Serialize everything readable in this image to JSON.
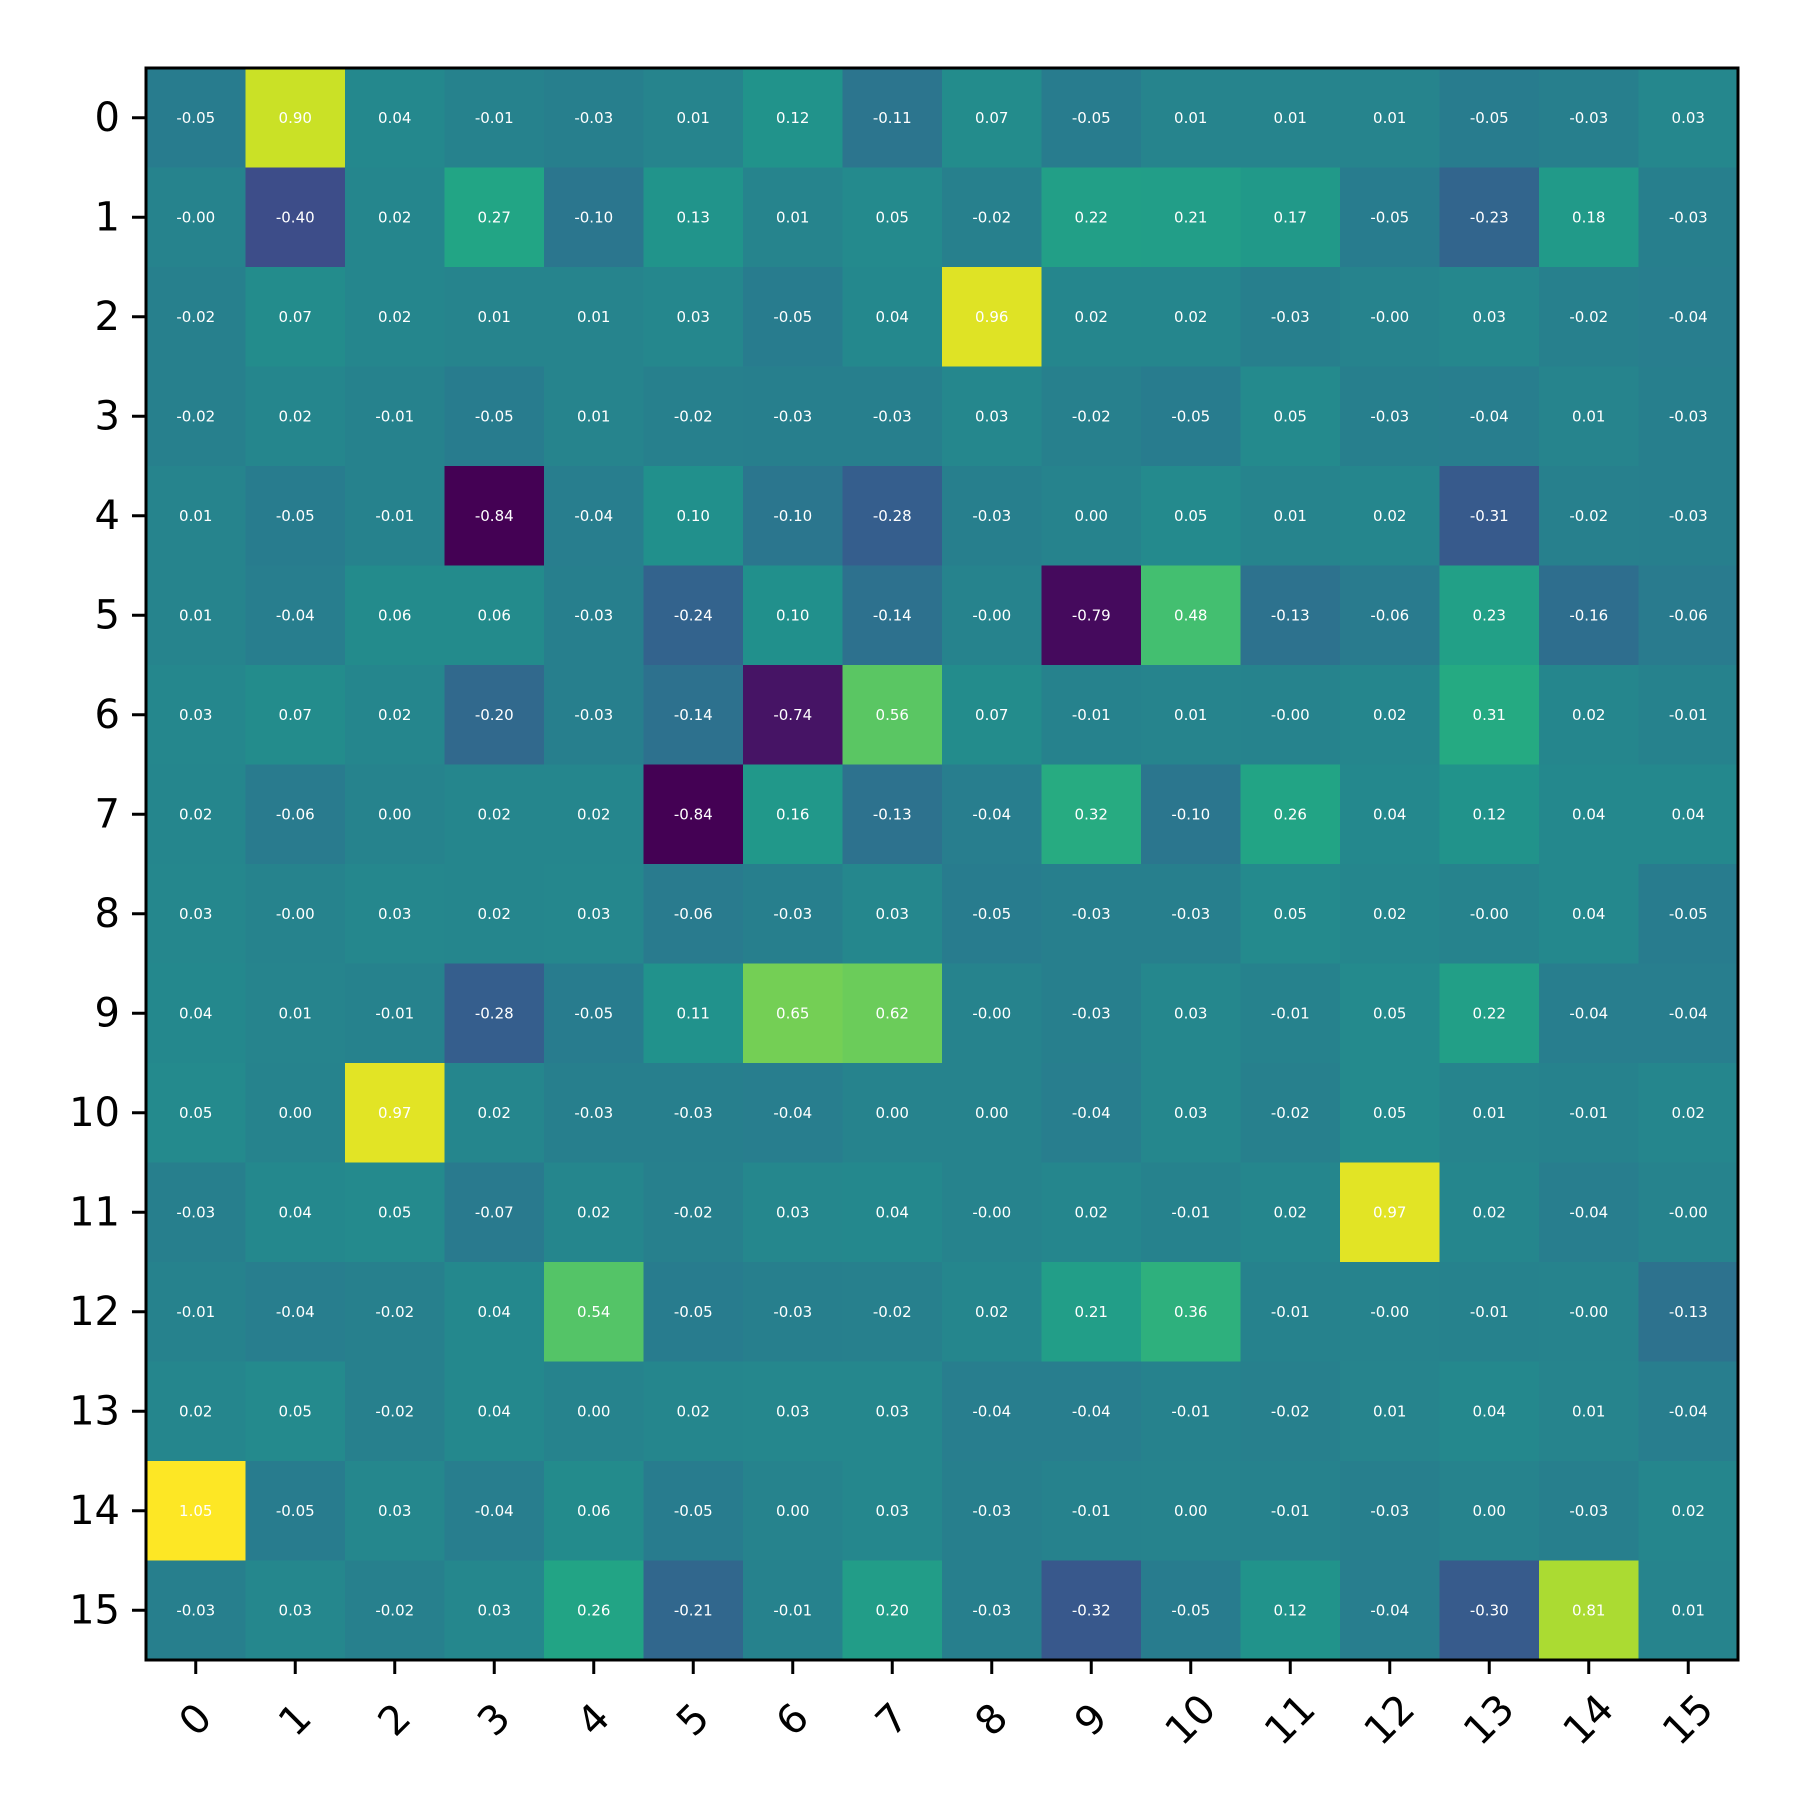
{
  "chart_data": {
    "type": "heatmap",
    "title": "",
    "xlabel": "",
    "ylabel": "",
    "x_categories": [
      "0",
      "1",
      "2",
      "3",
      "4",
      "5",
      "6",
      "7",
      "8",
      "9",
      "10",
      "11",
      "12",
      "13",
      "14",
      "15"
    ],
    "y_categories": [
      "0",
      "1",
      "2",
      "3",
      "4",
      "5",
      "6",
      "7",
      "8",
      "9",
      "10",
      "11",
      "12",
      "13",
      "14",
      "15"
    ],
    "x_tick_rotation_deg": 45,
    "colormap": "viridis",
    "value_range": [
      -0.84,
      1.05
    ],
    "cell_text_color": "#ffffff",
    "values": [
      [
        -0.05,
        0.9,
        0.04,
        -0.01,
        -0.03,
        0.01,
        0.12,
        -0.11,
        0.07,
        -0.05,
        0.01,
        0.01,
        0.01,
        -0.05,
        -0.03,
        0.03
      ],
      [
        0.0,
        -0.4,
        0.02,
        0.27,
        -0.1,
        0.13,
        0.01,
        0.05,
        -0.02,
        0.22,
        0.21,
        0.17,
        -0.05,
        -0.23,
        0.18,
        -0.03
      ],
      [
        -0.02,
        0.07,
        0.02,
        0.01,
        0.01,
        0.03,
        -0.05,
        0.04,
        0.96,
        0.02,
        0.02,
        -0.03,
        0.0,
        0.03,
        -0.02,
        -0.04
      ],
      [
        -0.02,
        0.02,
        -0.01,
        -0.05,
        0.01,
        -0.02,
        -0.03,
        -0.03,
        0.03,
        -0.02,
        -0.05,
        0.05,
        -0.03,
        -0.04,
        0.01,
        -0.03
      ],
      [
        0.01,
        -0.05,
        -0.01,
        -0.84,
        -0.04,
        0.1,
        -0.1,
        -0.28,
        -0.03,
        0.0,
        0.05,
        0.01,
        0.02,
        -0.31,
        -0.02,
        -0.03
      ],
      [
        0.01,
        -0.04,
        0.06,
        0.06,
        -0.03,
        -0.24,
        0.1,
        -0.14,
        0.0,
        -0.79,
        0.48,
        -0.13,
        -0.06,
        0.23,
        -0.16,
        -0.06
      ],
      [
        0.03,
        0.07,
        0.02,
        -0.2,
        -0.03,
        -0.14,
        -0.74,
        0.56,
        0.07,
        -0.01,
        0.01,
        0.0,
        0.02,
        0.31,
        0.02,
        -0.01
      ],
      [
        0.02,
        -0.06,
        0.0,
        0.02,
        0.02,
        -0.84,
        0.16,
        -0.13,
        -0.04,
        0.32,
        -0.1,
        0.26,
        0.04,
        0.12,
        0.04,
        0.04
      ],
      [
        0.03,
        0.0,
        0.03,
        0.02,
        0.03,
        -0.06,
        -0.03,
        0.03,
        -0.05,
        -0.03,
        -0.03,
        0.05,
        0.02,
        0.0,
        0.04,
        -0.05
      ],
      [
        0.04,
        0.01,
        -0.01,
        -0.28,
        -0.05,
        0.11,
        0.65,
        0.62,
        0.0,
        -0.03,
        0.03,
        -0.01,
        0.05,
        0.22,
        -0.04,
        -0.04
      ],
      [
        0.05,
        0.0,
        0.97,
        0.02,
        -0.03,
        -0.03,
        -0.04,
        0.0,
        0.0,
        -0.04,
        0.03,
        -0.02,
        0.05,
        0.01,
        -0.01,
        0.02
      ],
      [
        -0.03,
        0.04,
        0.05,
        -0.07,
        0.02,
        -0.02,
        0.03,
        0.04,
        0.0,
        0.02,
        -0.01,
        0.02,
        0.97,
        0.02,
        -0.04,
        0.0
      ],
      [
        -0.01,
        -0.04,
        -0.02,
        0.04,
        0.54,
        -0.05,
        -0.03,
        -0.02,
        0.02,
        0.21,
        0.36,
        -0.01,
        0.0,
        -0.01,
        0.0,
        -0.13
      ],
      [
        0.02,
        0.05,
        -0.02,
        0.04,
        0.0,
        0.02,
        0.03,
        0.03,
        -0.04,
        -0.04,
        -0.01,
        -0.02,
        0.01,
        0.04,
        0.01,
        -0.04
      ],
      [
        1.05,
        -0.05,
        0.03,
        -0.04,
        0.06,
        -0.05,
        0.0,
        0.03,
        -0.03,
        -0.01,
        0.0,
        -0.01,
        -0.03,
        0.0,
        -0.03,
        0.02
      ],
      [
        -0.03,
        0.03,
        -0.02,
        0.03,
        0.26,
        -0.21,
        -0.01,
        0.2,
        -0.03,
        -0.32,
        -0.05,
        0.12,
        -0.04,
        -0.3,
        0.81,
        0.01
      ]
    ],
    "cell_labels": [
      [
        "-0.05",
        "0.90",
        "0.04",
        "-0.01",
        "-0.03",
        "0.01",
        "0.12",
        "-0.11",
        "0.07",
        "-0.05",
        "0.01",
        "0.01",
        "0.01",
        "-0.05",
        "-0.03",
        "0.03"
      ],
      [
        "-0.00",
        "-0.40",
        "0.02",
        "0.27",
        "-0.10",
        "0.13",
        "0.01",
        "0.05",
        "-0.02",
        "0.22",
        "0.21",
        "0.17",
        "-0.05",
        "-0.23",
        "0.18",
        "-0.03"
      ],
      [
        "-0.02",
        "0.07",
        "0.02",
        "0.01",
        "0.01",
        "0.03",
        "-0.05",
        "0.04",
        "0.96",
        "0.02",
        "0.02",
        "-0.03",
        "-0.00",
        "0.03",
        "-0.02",
        "-0.04"
      ],
      [
        "-0.02",
        "0.02",
        "-0.01",
        "-0.05",
        "0.01",
        "-0.02",
        "-0.03",
        "-0.03",
        "0.03",
        "-0.02",
        "-0.05",
        "0.05",
        "-0.03",
        "-0.04",
        "0.01",
        "-0.03"
      ],
      [
        "0.01",
        "-0.05",
        "-0.01",
        "-0.84",
        "-0.04",
        "0.10",
        "-0.10",
        "-0.28",
        "-0.03",
        "0.00",
        "0.05",
        "0.01",
        "0.02",
        "-0.31",
        "-0.02",
        "-0.03"
      ],
      [
        "0.01",
        "-0.04",
        "0.06",
        "0.06",
        "-0.03",
        "-0.24",
        "0.10",
        "-0.14",
        "-0.00",
        "-0.79",
        "0.48",
        "-0.13",
        "-0.06",
        "0.23",
        "-0.16",
        "-0.06"
      ],
      [
        "0.03",
        "0.07",
        "0.02",
        "-0.20",
        "-0.03",
        "-0.14",
        "-0.74",
        "0.56",
        "0.07",
        "-0.01",
        "0.01",
        "-0.00",
        "0.02",
        "0.31",
        "0.02",
        "-0.01"
      ],
      [
        "0.02",
        "-0.06",
        "0.00",
        "0.02",
        "0.02",
        "-0.84",
        "0.16",
        "-0.13",
        "-0.04",
        "0.32",
        "-0.10",
        "0.26",
        "0.04",
        "0.12",
        "0.04",
        "0.04"
      ],
      [
        "0.03",
        "-0.00",
        "0.03",
        "0.02",
        "0.03",
        "-0.06",
        "-0.03",
        "0.03",
        "-0.05",
        "-0.03",
        "-0.03",
        "0.05",
        "0.02",
        "-0.00",
        "0.04",
        "-0.05"
      ],
      [
        "0.04",
        "0.01",
        "-0.01",
        "-0.28",
        "-0.05",
        "0.11",
        "0.65",
        "0.62",
        "-0.00",
        "-0.03",
        "0.03",
        "-0.01",
        "0.05",
        "0.22",
        "-0.04",
        "-0.04"
      ],
      [
        "0.05",
        "0.00",
        "0.97",
        "0.02",
        "-0.03",
        "-0.03",
        "-0.04",
        "0.00",
        "0.00",
        "-0.04",
        "0.03",
        "-0.02",
        "0.05",
        "0.01",
        "-0.01",
        "0.02"
      ],
      [
        "-0.03",
        "0.04",
        "0.05",
        "-0.07",
        "0.02",
        "-0.02",
        "0.03",
        "0.04",
        "-0.00",
        "0.02",
        "-0.01",
        "0.02",
        "0.97",
        "0.02",
        "-0.04",
        "-0.00"
      ],
      [
        "-0.01",
        "-0.04",
        "-0.02",
        "0.04",
        "0.54",
        "-0.05",
        "-0.03",
        "-0.02",
        "0.02",
        "0.21",
        "0.36",
        "-0.01",
        "-0.00",
        "-0.01",
        "-0.00",
        "-0.13"
      ],
      [
        "0.02",
        "0.05",
        "-0.02",
        "0.04",
        "0.00",
        "0.02",
        "0.03",
        "0.03",
        "-0.04",
        "-0.04",
        "-0.01",
        "-0.02",
        "0.01",
        "0.04",
        "0.01",
        "-0.04"
      ],
      [
        "1.05",
        "-0.05",
        "0.03",
        "-0.04",
        "0.06",
        "-0.05",
        "0.00",
        "0.03",
        "-0.03",
        "-0.01",
        "0.00",
        "-0.01",
        "-0.03",
        "0.00",
        "-0.03",
        "0.02"
      ],
      [
        "-0.03",
        "0.03",
        "-0.02",
        "0.03",
        "0.26",
        "-0.21",
        "-0.01",
        "0.20",
        "-0.03",
        "-0.32",
        "-0.05",
        "0.12",
        "-0.04",
        "-0.30",
        "0.81",
        "0.01"
      ]
    ]
  }
}
